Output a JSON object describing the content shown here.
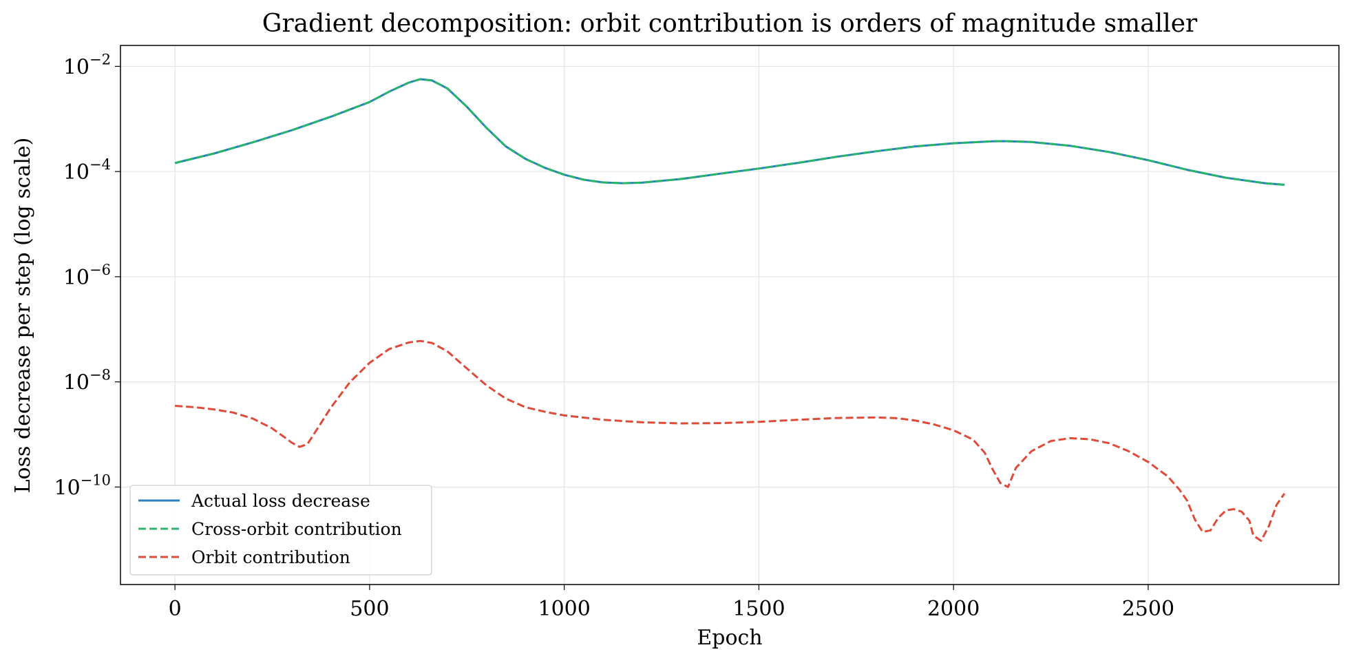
{
  "chart_data": {
    "type": "line",
    "title": "Gradient decomposition: orbit contribution is orders of magnitude smaller",
    "xlabel": "Epoch",
    "ylabel": "Loss decrease per step (log scale)",
    "xlim": [
      -140,
      2990
    ],
    "ylim": [
      1.4e-12,
      0.025
    ],
    "yscale": "log",
    "grid": true,
    "legend_position": "lower-left",
    "x_ticks": [
      0,
      500,
      1000,
      1500,
      2000,
      2500
    ],
    "y_ticks": [
      {
        "value": 1e-10,
        "base": "10",
        "exp": "−10"
      },
      {
        "value": 1e-08,
        "base": "10",
        "exp": "−8"
      },
      {
        "value": 1e-06,
        "base": "10",
        "exp": "−6"
      },
      {
        "value": 0.0001,
        "base": "10",
        "exp": "−4"
      },
      {
        "value": 0.01,
        "base": "10",
        "exp": "−2"
      }
    ],
    "series": [
      {
        "name": "Actual loss decrease",
        "color": "#2a7fc0",
        "dash": "solid",
        "x": [
          0,
          100,
          200,
          300,
          400,
          500,
          550,
          600,
          630,
          660,
          700,
          750,
          800,
          850,
          900,
          950,
          1000,
          1050,
          1100,
          1150,
          1200,
          1300,
          1400,
          1500,
          1600,
          1700,
          1800,
          1900,
          2000,
          2100,
          2130,
          2200,
          2300,
          2400,
          2500,
          2600,
          2700,
          2800,
          2850
        ],
        "y": [
          0.000145,
          0.00022,
          0.00036,
          0.00061,
          0.0011,
          0.0021,
          0.0033,
          0.0049,
          0.0057,
          0.0054,
          0.0038,
          0.0017,
          0.00068,
          0.0003,
          0.000175,
          0.000118,
          8.7e-05,
          7e-05,
          6.2e-05,
          6e-05,
          6.15e-05,
          7.2e-05,
          9.1e-05,
          0.000114,
          0.000146,
          0.000191,
          0.000242,
          0.000299,
          0.000345,
          0.000375,
          0.000378,
          0.000365,
          0.000308,
          0.000235,
          0.000164,
          0.000108,
          7.6e-05,
          6e-05,
          5.6e-05
        ]
      },
      {
        "name": "Cross-orbit contribution",
        "color": "#26b56a",
        "dash": "dashed",
        "x": [
          0,
          100,
          200,
          300,
          400,
          500,
          550,
          600,
          630,
          660,
          700,
          750,
          800,
          850,
          900,
          950,
          1000,
          1050,
          1100,
          1150,
          1200,
          1300,
          1400,
          1500,
          1600,
          1700,
          1800,
          1900,
          2000,
          2100,
          2130,
          2200,
          2300,
          2400,
          2500,
          2600,
          2700,
          2800,
          2850
        ],
        "y": [
          0.000145,
          0.00022,
          0.00036,
          0.00061,
          0.0011,
          0.0021,
          0.0033,
          0.0049,
          0.0057,
          0.0054,
          0.0038,
          0.0017,
          0.00068,
          0.0003,
          0.000175,
          0.000118,
          8.7e-05,
          7e-05,
          6.2e-05,
          6e-05,
          6.15e-05,
          7.2e-05,
          9.1e-05,
          0.000114,
          0.000146,
          0.000191,
          0.000242,
          0.000299,
          0.000345,
          0.000375,
          0.000378,
          0.000365,
          0.000308,
          0.000235,
          0.000164,
          0.000108,
          7.6e-05,
          6e-05,
          5.6e-05
        ]
      },
      {
        "name": "Orbit contribution",
        "color": "#e04a38",
        "dash": "dashed",
        "x": [
          0,
          50,
          100,
          150,
          200,
          250,
          280,
          300,
          320,
          340,
          360,
          400,
          450,
          500,
          550,
          600,
          630,
          660,
          700,
          750,
          800,
          850,
          900,
          950,
          1000,
          1100,
          1200,
          1300,
          1400,
          1500,
          1600,
          1700,
          1800,
          1850,
          1900,
          1950,
          2000,
          2050,
          2080,
          2100,
          2120,
          2140,
          2160,
          2200,
          2250,
          2300,
          2350,
          2400,
          2450,
          2500,
          2550,
          2580,
          2600,
          2620,
          2640,
          2660,
          2680,
          2700,
          2720,
          2740,
          2760,
          2770,
          2790,
          2810,
          2830,
          2850
        ],
        "y": [
          3.5e-09,
          3.3e-09,
          3e-09,
          2.6e-09,
          2e-09,
          1.3e-09,
          9e-10,
          7e-10,
          5.8e-10,
          6.5e-10,
          1.1e-09,
          3.2e-09,
          1e-08,
          2.3e-08,
          4.2e-08,
          5.6e-08,
          6e-08,
          5.5e-08,
          3.8e-08,
          1.8e-08,
          8.6e-09,
          4.8e-09,
          3.3e-09,
          2.7e-09,
          2.3e-09,
          1.9e-09,
          1.7e-09,
          1.62e-09,
          1.64e-09,
          1.74e-09,
          1.9e-09,
          2.06e-09,
          2.1e-09,
          2.05e-09,
          1.85e-09,
          1.55e-09,
          1.2e-09,
          8e-10,
          4.5e-10,
          2.2e-10,
          1.2e-10,
          1e-10,
          2.3e-10,
          4.8e-10,
          7.5e-10,
          8.5e-10,
          8.1e-10,
          6.8e-10,
          4.8e-10,
          3e-10,
          1.6e-10,
          9e-11,
          5.5e-11,
          2.4e-11,
          1.4e-11,
          1.5e-11,
          2.6e-11,
          3.6e-11,
          3.8e-11,
          3.4e-11,
          2.3e-11,
          1.2e-11,
          9.5e-12,
          1.8e-11,
          4.6e-11,
          7.5e-11
        ]
      }
    ]
  }
}
